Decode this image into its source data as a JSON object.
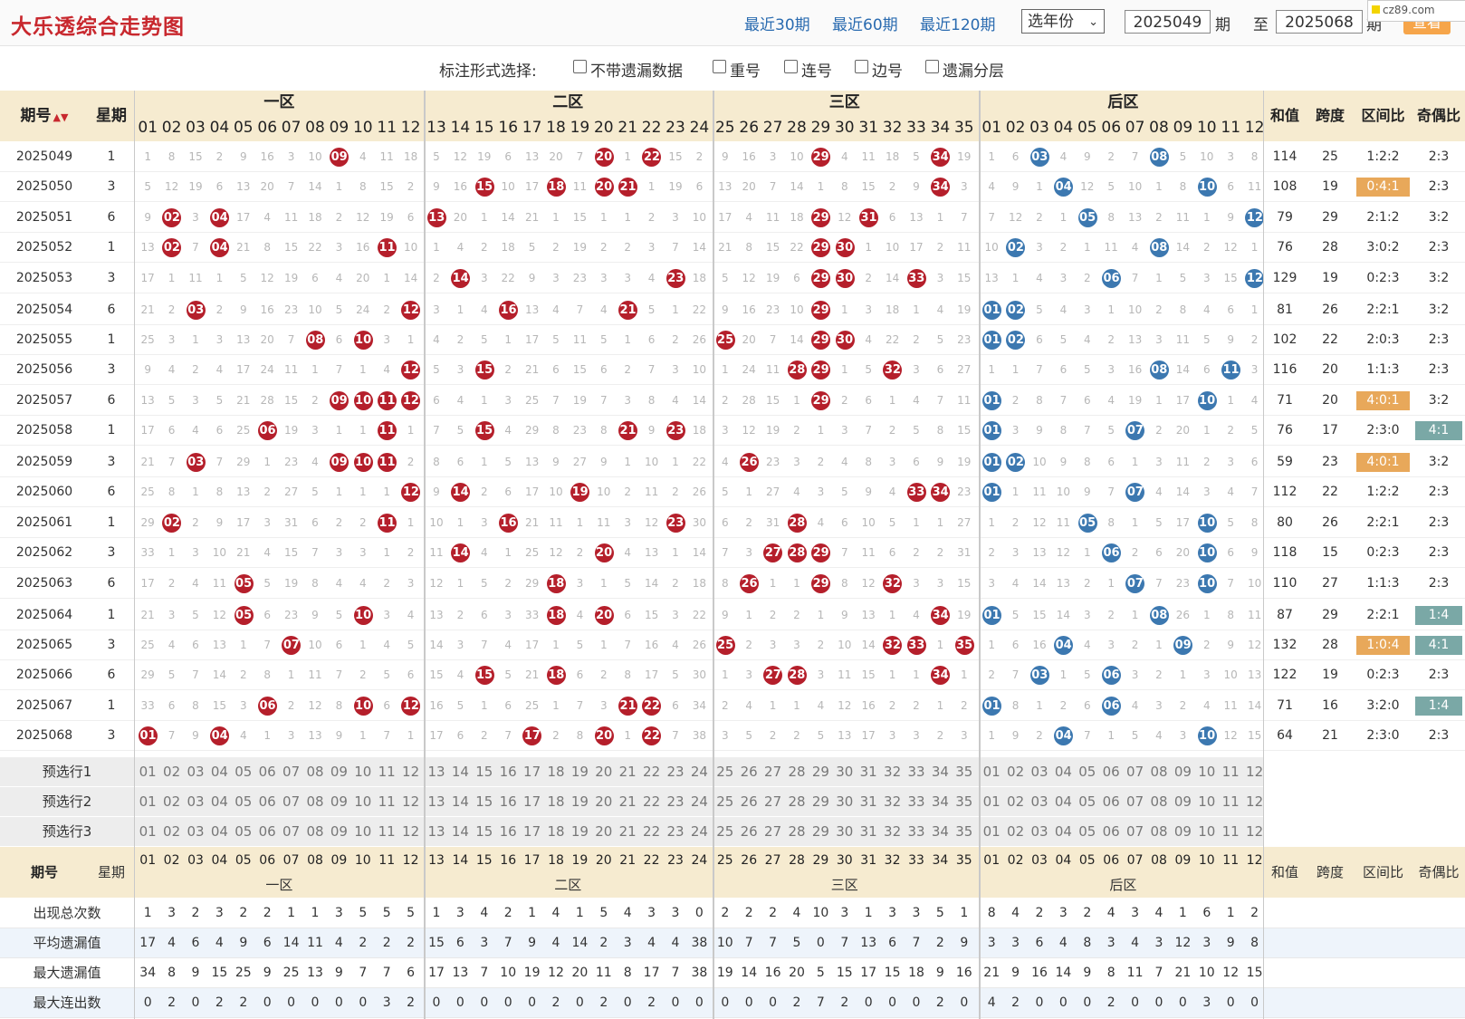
{
  "header": {
    "title": "大乐透综合走势图",
    "ranges": [
      "最近30期",
      "最近60期",
      "最近120期"
    ],
    "year_select": "选年份",
    "from_issue": "2025049",
    "issue_unit": "期",
    "to_label": "至",
    "to_issue": "2025068",
    "query": "查看",
    "watermark": "cz89.com"
  },
  "options": {
    "label": "标注形式选择:",
    "items": [
      "不带遗漏数据",
      "重号",
      "连号",
      "边号",
      "遗漏分层"
    ]
  },
  "columns": {
    "issue": "期号",
    "weekday": "星期",
    "zones": [
      "一区",
      "二区",
      "三区",
      "后区"
    ],
    "stats": [
      "和值",
      "跨度",
      "区间比",
      "奇偶比"
    ]
  },
  "front_numbers": [
    "01",
    "02",
    "03",
    "04",
    "05",
    "06",
    "07",
    "08",
    "09",
    "10",
    "11",
    "12",
    "13",
    "14",
    "15",
    "16",
    "17",
    "18",
    "19",
    "20",
    "21",
    "22",
    "23",
    "24",
    "25",
    "26",
    "27",
    "28",
    "29",
    "30",
    "31",
    "32",
    "33",
    "34",
    "35"
  ],
  "back_numbers": [
    "01",
    "02",
    "03",
    "04",
    "05",
    "06",
    "07",
    "08",
    "09",
    "10",
    "11",
    "12"
  ],
  "draws": [
    {
      "issue": "2025049",
      "week": "1",
      "front": [
        "09",
        "20",
        "22",
        "29",
        "34"
      ],
      "back": [
        "03",
        "08"
      ],
      "sum": "114",
      "span": "25",
      "zone": "1:2:2",
      "oe": "2:3"
    },
    {
      "issue": "2025050",
      "week": "3",
      "front": [
        "15",
        "18",
        "20",
        "21",
        "34"
      ],
      "back": [
        "04",
        "10"
      ],
      "sum": "108",
      "span": "19",
      "zone": "0:4:1",
      "oe": "2:3"
    },
    {
      "issue": "2025051",
      "week": "6",
      "front": [
        "02",
        "04",
        "13",
        "29",
        "31"
      ],
      "back": [
        "05",
        "12"
      ],
      "sum": "79",
      "span": "29",
      "zone": "2:1:2",
      "oe": "3:2"
    },
    {
      "issue": "2025052",
      "week": "1",
      "front": [
        "02",
        "04",
        "11",
        "29",
        "30"
      ],
      "back": [
        "02",
        "08"
      ],
      "sum": "76",
      "span": "28",
      "zone": "3:0:2",
      "oe": "2:3"
    },
    {
      "issue": "2025053",
      "week": "3",
      "front": [
        "14",
        "23",
        "29",
        "30",
        "33"
      ],
      "back": [
        "06",
        "12"
      ],
      "sum": "129",
      "span": "19",
      "zone": "0:2:3",
      "oe": "3:2"
    },
    {
      "issue": "2025054",
      "week": "6",
      "front": [
        "03",
        "12",
        "16",
        "21",
        "29"
      ],
      "back": [
        "01",
        "02"
      ],
      "sum": "81",
      "span": "26",
      "zone": "2:2:1",
      "oe": "3:2"
    },
    {
      "issue": "2025055",
      "week": "1",
      "front": [
        "08",
        "10",
        "25",
        "29",
        "30"
      ],
      "back": [
        "01",
        "02"
      ],
      "sum": "102",
      "span": "22",
      "zone": "2:0:3",
      "oe": "2:3"
    },
    {
      "issue": "2025056",
      "week": "3",
      "front": [
        "12",
        "15",
        "28",
        "29",
        "32"
      ],
      "back": [
        "08",
        "11"
      ],
      "sum": "116",
      "span": "20",
      "zone": "1:1:3",
      "oe": "2:3"
    },
    {
      "issue": "2025057",
      "week": "6",
      "front": [
        "09",
        "10",
        "11",
        "12",
        "29"
      ],
      "back": [
        "01",
        "10"
      ],
      "sum": "71",
      "span": "20",
      "zone": "4:0:1",
      "oe": "3:2"
    },
    {
      "issue": "2025058",
      "week": "1",
      "front": [
        "06",
        "11",
        "15",
        "21",
        "23"
      ],
      "back": [
        "01",
        "07"
      ],
      "sum": "76",
      "span": "17",
      "zone": "2:3:0",
      "oe": "4:1"
    },
    {
      "issue": "2025059",
      "week": "3",
      "front": [
        "03",
        "09",
        "10",
        "11",
        "26"
      ],
      "back": [
        "01",
        "02"
      ],
      "sum": "59",
      "span": "23",
      "zone": "4:0:1",
      "oe": "3:2"
    },
    {
      "issue": "2025060",
      "week": "6",
      "front": [
        "12",
        "14",
        "19",
        "33",
        "34"
      ],
      "back": [
        "01",
        "07"
      ],
      "sum": "112",
      "span": "22",
      "zone": "1:2:2",
      "oe": "2:3"
    },
    {
      "issue": "2025061",
      "week": "1",
      "front": [
        "02",
        "11",
        "16",
        "23",
        "28"
      ],
      "back": [
        "05",
        "10"
      ],
      "sum": "80",
      "span": "26",
      "zone": "2:2:1",
      "oe": "2:3"
    },
    {
      "issue": "2025062",
      "week": "3",
      "front": [
        "14",
        "20",
        "27",
        "28",
        "29"
      ],
      "back": [
        "06",
        "10"
      ],
      "sum": "118",
      "span": "15",
      "zone": "0:2:3",
      "oe": "2:3"
    },
    {
      "issue": "2025063",
      "week": "6",
      "front": [
        "05",
        "18",
        "26",
        "29",
        "32"
      ],
      "back": [
        "07",
        "10"
      ],
      "sum": "110",
      "span": "27",
      "zone": "1:1:3",
      "oe": "2:3"
    },
    {
      "issue": "2025064",
      "week": "1",
      "front": [
        "05",
        "10",
        "18",
        "20",
        "34"
      ],
      "back": [
        "01",
        "08"
      ],
      "sum": "87",
      "span": "29",
      "zone": "2:2:1",
      "oe": "1:4"
    },
    {
      "issue": "2025065",
      "week": "3",
      "front": [
        "07",
        "25",
        "32",
        "33",
        "35"
      ],
      "back": [
        "04",
        "09"
      ],
      "sum": "132",
      "span": "28",
      "zone": "1:0:4",
      "oe": "4:1"
    },
    {
      "issue": "2025066",
      "week": "6",
      "front": [
        "15",
        "18",
        "27",
        "28",
        "34"
      ],
      "back": [
        "03",
        "06"
      ],
      "sum": "122",
      "span": "19",
      "zone": "0:2:3",
      "oe": "2:3"
    },
    {
      "issue": "2025067",
      "week": "1",
      "front": [
        "06",
        "10",
        "12",
        "21",
        "22"
      ],
      "back": [
        "01",
        "06"
      ],
      "sum": "71",
      "span": "16",
      "zone": "3:2:0",
      "oe": "1:4"
    },
    {
      "issue": "2025068",
      "week": "3",
      "front": [
        "01",
        "04",
        "17",
        "20",
        "22"
      ],
      "back": [
        "04",
        "10"
      ],
      "sum": "64",
      "span": "21",
      "zone": "2:3:0",
      "oe": "2:3"
    }
  ],
  "highlight": {
    "zone": {
      "2025050": "or",
      "2025057": "or",
      "2025059": "or",
      "2025065": "or"
    },
    "oe": {
      "2025058": "tl",
      "2025064": "tl",
      "2025065": "tl",
      "2025067": "tl"
    },
    "colors": {
      "red": "#b51f2b",
      "blue": "#3c78b0",
      "orange": "#e8a85a",
      "teal": "#7aa8a6"
    }
  },
  "preselect_rows": [
    "预选行1",
    "预选行2",
    "预选行3"
  ],
  "stat_rows": [
    {
      "label": "出现总次数",
      "front": [
        "1",
        "3",
        "2",
        "3",
        "2",
        "2",
        "1",
        "1",
        "3",
        "5",
        "5",
        "5",
        "1",
        "3",
        "4",
        "2",
        "1",
        "4",
        "1",
        "5",
        "4",
        "3",
        "3",
        "0",
        "2",
        "2",
        "2",
        "4",
        "10",
        "3",
        "1",
        "3",
        "3",
        "5",
        "1"
      ],
      "back": [
        "8",
        "4",
        "2",
        "3",
        "2",
        "4",
        "3",
        "4",
        "1",
        "6",
        "1",
        "2"
      ]
    },
    {
      "label": "平均遗漏值",
      "front": [
        "17",
        "4",
        "6",
        "4",
        "9",
        "6",
        "14",
        "11",
        "4",
        "2",
        "2",
        "2",
        "15",
        "6",
        "3",
        "7",
        "9",
        "4",
        "14",
        "2",
        "3",
        "4",
        "4",
        "38",
        "10",
        "7",
        "7",
        "5",
        "0",
        "7",
        "13",
        "6",
        "7",
        "2",
        "9"
      ],
      "back": [
        "3",
        "3",
        "6",
        "4",
        "8",
        "3",
        "4",
        "3",
        "12",
        "3",
        "9",
        "8"
      ]
    },
    {
      "label": "最大遗漏值",
      "front": [
        "34",
        "8",
        "9",
        "15",
        "25",
        "9",
        "25",
        "13",
        "9",
        "7",
        "7",
        "6",
        "17",
        "13",
        "7",
        "10",
        "19",
        "12",
        "20",
        "11",
        "8",
        "17",
        "7",
        "38",
        "19",
        "14",
        "16",
        "20",
        "5",
        "15",
        "17",
        "15",
        "18",
        "9",
        "16"
      ],
      "back": [
        "21",
        "9",
        "16",
        "14",
        "9",
        "8",
        "11",
        "7",
        "21",
        "10",
        "12",
        "15"
      ]
    },
    {
      "label": "最大连出数",
      "front": [
        "0",
        "2",
        "0",
        "2",
        "2",
        "0",
        "0",
        "0",
        "0",
        "0",
        "3",
        "2",
        "0",
        "0",
        "0",
        "0",
        "0",
        "2",
        "0",
        "2",
        "0",
        "2",
        "0",
        "0",
        "0",
        "0",
        "0",
        "2",
        "7",
        "2",
        "0",
        "0",
        "0",
        "2",
        "0"
      ],
      "back": [
        "4",
        "2",
        "0",
        "0",
        "0",
        "2",
        "0",
        "0",
        "0",
        "3",
        "0",
        "0"
      ]
    }
  ]
}
